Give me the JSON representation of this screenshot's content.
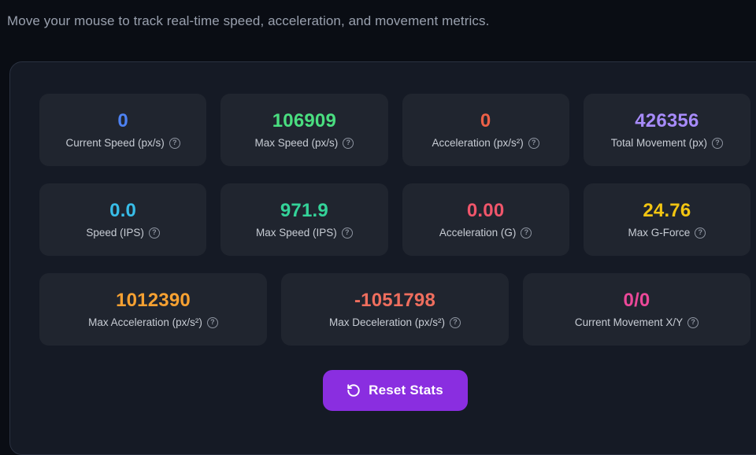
{
  "header": {
    "subtitle": "Move your mouse to track real-time speed, acceleration, and movement metrics."
  },
  "help_icon": "?",
  "stats": {
    "row1": [
      {
        "value": "0",
        "label": "Current Speed (px/s)",
        "color": "#4d82f3"
      },
      {
        "value": "106909",
        "label": "Max Speed (px/s)",
        "color": "#4ade80"
      },
      {
        "value": "0",
        "label": "Acceleration (px/s²)",
        "color": "#ec6047"
      },
      {
        "value": "426356",
        "label": "Total Movement (px)",
        "color": "#a78bfa"
      }
    ],
    "row2": [
      {
        "value": "0.0",
        "label": "Speed (IPS)",
        "color": "#38bde8"
      },
      {
        "value": "971.9",
        "label": "Max Speed (IPS)",
        "color": "#34d399"
      },
      {
        "value": "0.00",
        "label": "Acceleration (G)",
        "color": "#f0566b"
      },
      {
        "value": "24.76",
        "label": "Max G-Force",
        "color": "#f2c512"
      }
    ],
    "row3": [
      {
        "value": "1012390",
        "label": "Max Acceleration (px/s²)",
        "color": "#f6a132"
      },
      {
        "value": "-1051798",
        "label": "Max Deceleration (px/s²)",
        "color": "#ef6e5e"
      },
      {
        "value": "0/0",
        "label": "Current Movement X/Y",
        "color": "#ec4899"
      }
    ]
  },
  "reset_button": {
    "label": "Reset Stats"
  }
}
